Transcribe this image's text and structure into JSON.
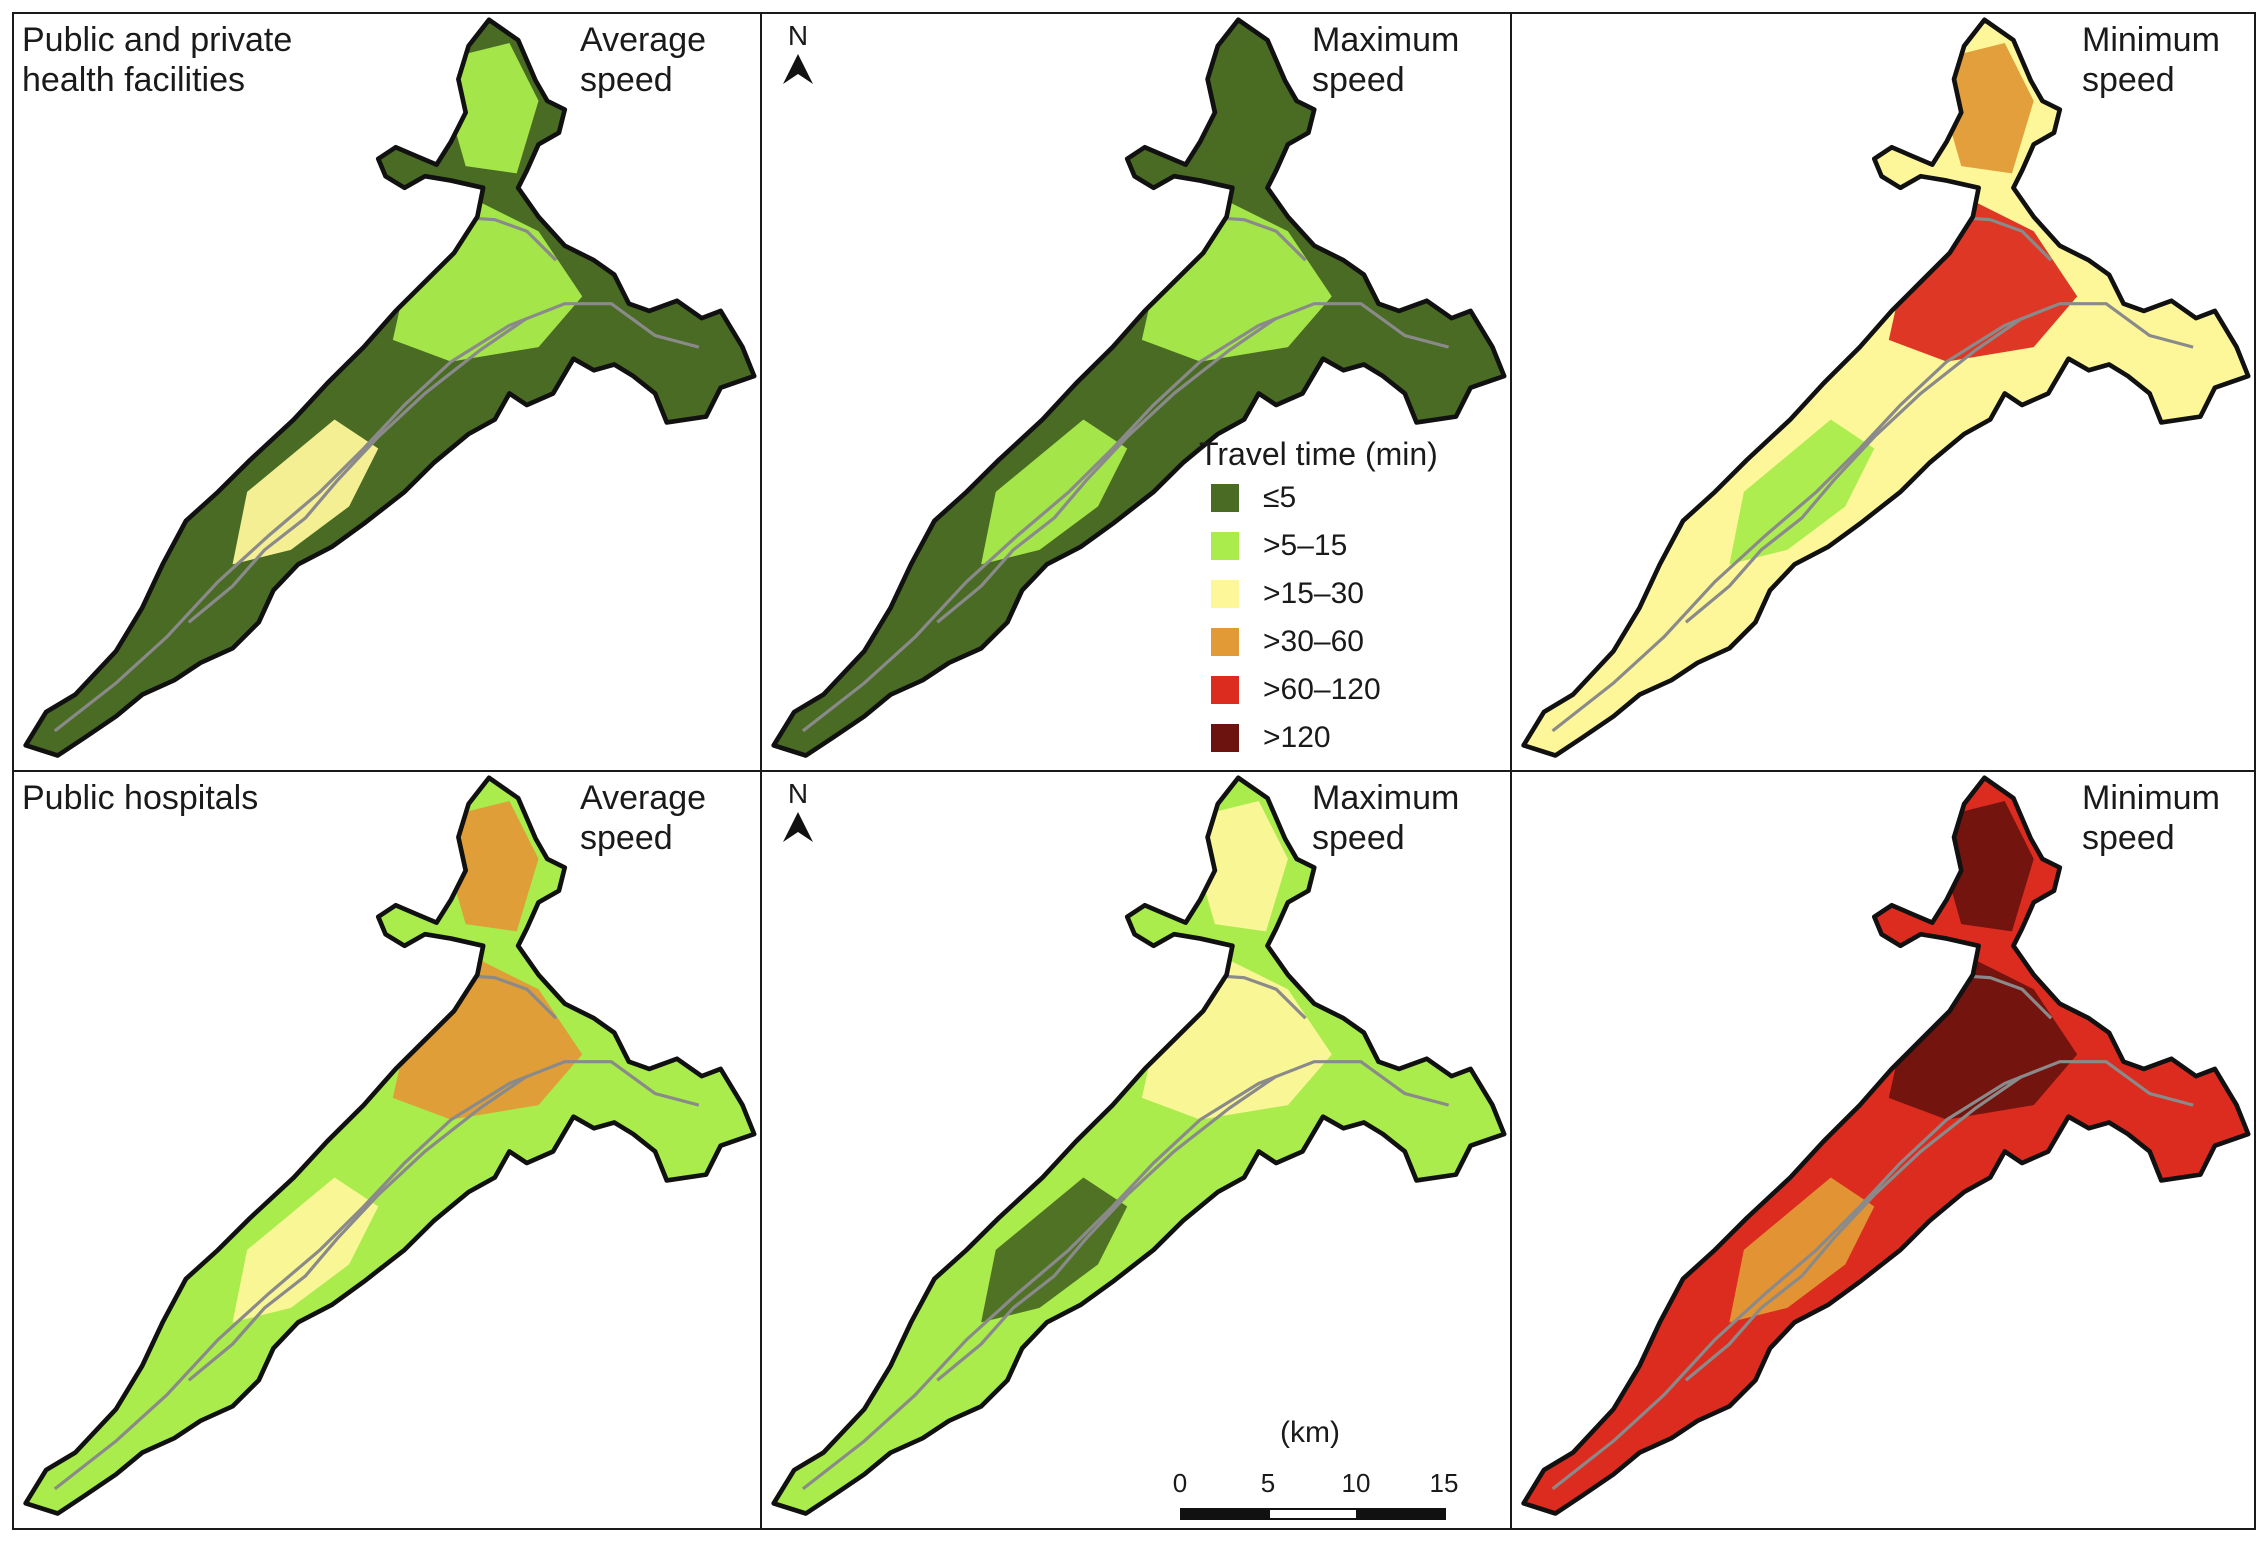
{
  "legend": {
    "title": "Travel time (min)",
    "items": [
      {
        "label": "≤5",
        "color": "#4a6b23"
      },
      {
        "label": ">5–15",
        "color": "#a9ec4c"
      },
      {
        "label": ">15–30",
        "color": "#fdf79a"
      },
      {
        "label": ">30–60",
        "color": "#e19a36"
      },
      {
        "label": ">60–120",
        "color": "#dc2c1f"
      },
      {
        "label": ">120",
        "color": "#6d130f"
      }
    ]
  },
  "north_label": "N",
  "scale_bar": {
    "unit": "(km)",
    "ticks": [
      "0",
      "5",
      "10",
      "15"
    ]
  },
  "panels": [
    {
      "row_label": "Public and private\nhealth facilities",
      "speed_label": "Average\nspeed",
      "north": false,
      "base": "#4a6b23",
      "patches": [
        "#a9ec4c",
        "#a9ec4c",
        "#fdf79a"
      ]
    },
    {
      "row_label": "",
      "speed_label": "Maximum\nspeed",
      "north": true,
      "base": "#4a6b23",
      "patches": [
        "#a9ec4c",
        "#4a6b23",
        "#a9ec4c"
      ]
    },
    {
      "row_label": "",
      "speed_label": "Minimum\nspeed",
      "north": false,
      "base": "#fdf79a",
      "patches": [
        "#dc2c1f",
        "#e19a36",
        "#a9ec4c"
      ]
    },
    {
      "row_label": "Public hospitals",
      "speed_label": "Average\nspeed",
      "north": false,
      "base": "#a9ec4c",
      "patches": [
        "#e19a36",
        "#e19a36",
        "#fdf79a"
      ]
    },
    {
      "row_label": "",
      "speed_label": "Maximum\nspeed",
      "north": true,
      "base": "#a9ec4c",
      "patches": [
        "#fdf79a",
        "#fdf79a",
        "#4a6b23"
      ]
    },
    {
      "row_label": "",
      "speed_label": "Minimum\nspeed",
      "north": false,
      "base": "#dc2c1f",
      "patches": [
        "#6d130f",
        "#6d130f",
        "#e19a36"
      ]
    }
  ]
}
